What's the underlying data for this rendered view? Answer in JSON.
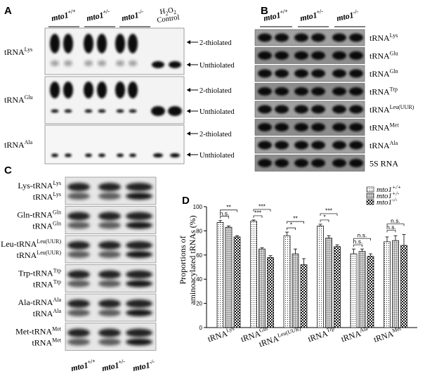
{
  "figure": {
    "panels": {
      "A": "A",
      "B": "B",
      "C": "C",
      "D": "D"
    }
  },
  "panel_a": {
    "genotypes": [
      {
        "base": "mto1",
        "sup": "+/+"
      },
      {
        "base": "mto1",
        "sup": "+/-"
      },
      {
        "base": "mto1",
        "sup": "-/-"
      }
    ],
    "control": {
      "line1_base": "H",
      "line1_sub": "2",
      "line1_mid": "O",
      "line1_sub2": "2",
      "line2": "Control"
    },
    "blots": [
      {
        "trna": "tRNA",
        "sup": "Lys",
        "bands": [
          "2-thiolated",
          "Unthiolated"
        ]
      },
      {
        "trna": "tRNA",
        "sup": "Glu",
        "bands": [
          "2-thiolated",
          "Unthiolated"
        ]
      },
      {
        "trna": "tRNA",
        "sup": "Ala",
        "bands": [
          "2-thiolated",
          "Unthiolated"
        ]
      }
    ]
  },
  "panel_b": {
    "genotypes": [
      {
        "base": "mto1",
        "sup": "+/+"
      },
      {
        "base": "mto1",
        "sup": "+/-"
      },
      {
        "base": "mto1",
        "sup": "-/-"
      }
    ],
    "rows": [
      {
        "base": "tRNA",
        "sup": "Lys"
      },
      {
        "base": "tRNA",
        "sup": "Glu"
      },
      {
        "base": "tRNA",
        "sup": "Gln"
      },
      {
        "base": "tRNA",
        "sup": "Trp"
      },
      {
        "base": "tRNA",
        "sup": "Leu(UUR)"
      },
      {
        "base": "tRNA",
        "sup": "Met"
      },
      {
        "base": "tRNA",
        "sup": "Ala"
      },
      {
        "base": "5S RNA",
        "sup": ""
      }
    ]
  },
  "panel_c": {
    "rows": [
      {
        "charged": "Lys-tRNA",
        "sup": "Lys",
        "uncharged": "tRNA"
      },
      {
        "charged": "Gln-tRNA",
        "sup": "Gln",
        "uncharged": "tRNA"
      },
      {
        "charged": "Leu-tRNA",
        "sup": "Leu(UUR)",
        "uncharged": "tRNA"
      },
      {
        "charged": "Trp-tRNA",
        "sup": "Trp",
        "uncharged": "tRNA"
      },
      {
        "charged": "Ala-tRNA",
        "sup": "Ala",
        "uncharged": "tRNA"
      },
      {
        "charged": "Met-tRNA",
        "sup": "Met",
        "uncharged": "tRNA"
      }
    ],
    "genotypes": [
      {
        "base": "mto1",
        "sup": "+/+"
      },
      {
        "base": "mto1",
        "sup": "+/-"
      },
      {
        "base": "mto1",
        "sup": "-/-"
      }
    ]
  },
  "chart_data": {
    "type": "bar",
    "ylabel_line1": "Proportions of",
    "ylabel_line2": "aminoacylated tRNAs (%)",
    "ylim": [
      0,
      100
    ],
    "yticks": [
      "0",
      "20",
      "40",
      "60",
      "80",
      "100"
    ],
    "categories": [
      {
        "base": "tRNA",
        "sup": "Lys"
      },
      {
        "base": "tRNA",
        "sup": "Gln"
      },
      {
        "base": "tRNA",
        "sup": "Leu(UUR)"
      },
      {
        "base": "tRNA",
        "sup": "Trp"
      },
      {
        "base": "tRNA",
        "sup": "Ala"
      },
      {
        "base": "tRNA",
        "sup": "Met"
      }
    ],
    "series": [
      {
        "name": "mto1",
        "sup": "+/+",
        "pattern": "dots",
        "values": [
          87,
          88,
          76,
          84,
          61,
          71
        ],
        "errors": [
          1.5,
          1,
          3,
          1.5,
          4,
          4
        ]
      },
      {
        "name": "mto1",
        "sup": "+/-",
        "pattern": "grid",
        "values": [
          83,
          65,
          61,
          74,
          63,
          72
        ],
        "errors": [
          1,
          1,
          4,
          2,
          2,
          4
        ]
      },
      {
        "name": "mto1",
        "sup": "-/-",
        "pattern": "checker",
        "values": [
          75,
          58,
          52,
          67,
          59,
          68
        ],
        "errors": [
          1,
          1.5,
          5,
          1.5,
          2,
          9
        ]
      }
    ],
    "significance": [
      [
        {
          "pair": [
            0,
            1
          ],
          "label": "n.s."
        },
        {
          "pair": [
            0,
            2
          ],
          "label": "**"
        }
      ],
      [
        {
          "pair": [
            0,
            1
          ],
          "label": "***"
        },
        {
          "pair": [
            0,
            2
          ],
          "label": "***"
        }
      ],
      [
        {
          "pair": [
            0,
            1
          ],
          "label": "*"
        },
        {
          "pair": [
            0,
            2
          ],
          "label": "**"
        }
      ],
      [
        {
          "pair": [
            0,
            1
          ],
          "label": "*"
        },
        {
          "pair": [
            0,
            2
          ],
          "label": "***"
        }
      ],
      [
        {
          "pair": [
            0,
            1
          ],
          "label": "n.s."
        },
        {
          "pair": [
            0,
            2
          ],
          "label": "n.s."
        }
      ],
      [
        {
          "pair": [
            0,
            1
          ],
          "label": "n.s."
        },
        {
          "pair": [
            0,
            2
          ],
          "label": "n.s."
        }
      ]
    ],
    "legend_position": "top-right"
  }
}
